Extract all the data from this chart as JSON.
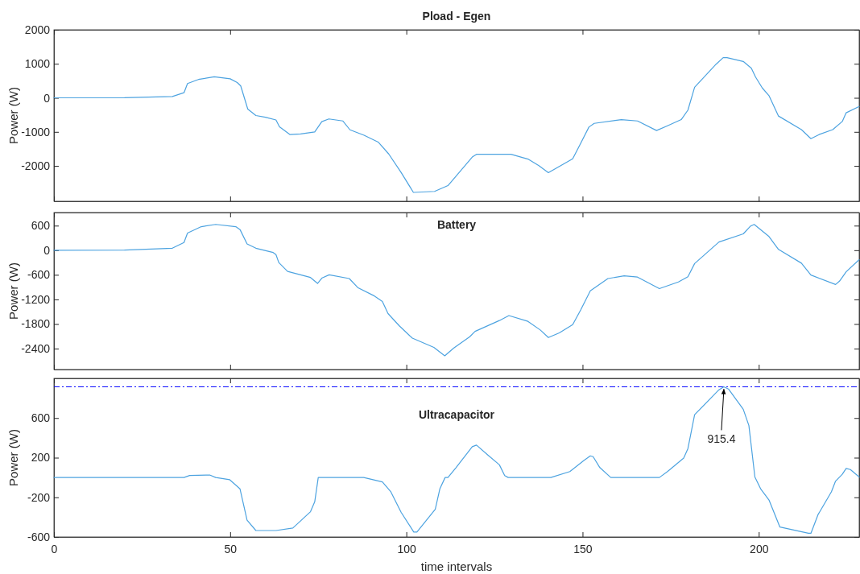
{
  "chart_data": [
    {
      "type": "line",
      "title": "Pload - Egen",
      "ylabel": "Power (W)",
      "xlim": [
        0,
        228.5
      ],
      "xticks": [
        0,
        50,
        100,
        150,
        200
      ],
      "ylim": [
        -3040,
        2000
      ],
      "yticks": [
        -2000,
        -1000,
        0,
        1000,
        2000
      ],
      "tick_labels": "y",
      "x": [
        0,
        20,
        33.6,
        36.9,
        37.9,
        41,
        45.5,
        50,
        52,
        53,
        55,
        57.3,
        60,
        63,
        64,
        67,
        70,
        74,
        76,
        78,
        82,
        84,
        88,
        92,
        95,
        98.5,
        102,
        108,
        111.8,
        118.7,
        119.9,
        129.7,
        134.5,
        137.6,
        140.3,
        143,
        147.2,
        149.5,
        151.8,
        153.3,
        161,
        165.6,
        171,
        174.1,
        178,
        179.9,
        181.8,
        187.9,
        189.9,
        191,
        195.6,
        197.9,
        199.1,
        201,
        202.9,
        205.6,
        212.1,
        214.8,
        217.1,
        221,
        223.7,
        224.8,
        228.5
      ],
      "series": [
        {
          "color": "#4da3e0",
          "values": [
            0,
            5,
            40,
            150,
            420,
            540,
            620,
            560,
            450,
            350,
            -330,
            -520,
            -570,
            -650,
            -850,
            -1080,
            -1060,
            -1000,
            -700,
            -620,
            -680,
            -940,
            -1100,
            -1300,
            -1650,
            -2190,
            -2780,
            -2750,
            -2580,
            -1740,
            -1660,
            -1660,
            -1800,
            -1995,
            -2200,
            -2040,
            -1790,
            -1330,
            -860,
            -750,
            -640,
            -680,
            -960,
            -820,
            -640,
            -360,
            310,
            990,
            1180,
            1180,
            1070,
            870,
            610,
            290,
            65,
            -535,
            -935,
            -1200,
            -1080,
            -935,
            -695,
            -440,
            -255
          ]
        }
      ]
    },
    {
      "type": "line",
      "title": "Battery",
      "ylabel": "Power (W)",
      "xlim": [
        0,
        228.5
      ],
      "xticks": [
        0,
        50,
        100,
        150,
        200
      ],
      "ylim": [
        -2910,
        920
      ],
      "yticks": [
        -2400,
        -1800,
        -1200,
        -600,
        0,
        600
      ],
      "tick_labels": "y",
      "x": [
        0,
        20,
        33.6,
        36.9,
        37.9,
        41.8,
        45.9,
        51.6,
        52.8,
        54.8,
        57.3,
        62.2,
        63,
        63.8,
        66.3,
        72.8,
        74.8,
        76.1,
        78.1,
        83.8,
        86.2,
        90.7,
        93.2,
        94.8,
        98,
        101.7,
        107.8,
        110.9,
        113.4,
        118,
        119.5,
        126.4,
        129.1,
        134.5,
        138,
        140.3,
        143.4,
        147.2,
        149.5,
        152.2,
        157.2,
        161.8,
        165.6,
        171.8,
        177.2,
        179.9,
        181.8,
        188.7,
        195.6,
        197.6,
        198.7,
        202.9,
        205.6,
        212.1,
        214.8,
        221.8,
        222.9,
        224.8,
        228.5
      ],
      "series": [
        {
          "color": "#4da3e0",
          "values": [
            0,
            5,
            50,
            190,
            420,
            575,
            630,
            575,
            505,
            153,
            50,
            -55,
            -105,
            -300,
            -515,
            -665,
            -810,
            -675,
            -600,
            -690,
            -910,
            -1105,
            -1250,
            -1545,
            -1845,
            -2145,
            -2370,
            -2575,
            -2390,
            -2110,
            -1980,
            -1715,
            -1595,
            -1735,
            -1945,
            -2130,
            -2015,
            -1815,
            -1450,
            -990,
            -690,
            -625,
            -655,
            -935,
            -775,
            -645,
            -325,
            200,
            400,
            585,
            630,
            335,
            20,
            -315,
            -605,
            -835,
            -755,
            -525,
            -230
          ]
        }
      ]
    },
    {
      "type": "line",
      "title": "Ultracapacitor",
      "ylabel": "Power (W)",
      "xlabel": "time intervals",
      "xlim": [
        0,
        228.5
      ],
      "xticks": [
        0,
        50,
        100,
        150,
        200
      ],
      "ylim": [
        -600,
        1000
      ],
      "yticks": [
        -600,
        -200,
        200,
        600
      ],
      "x": [
        0,
        36.9,
        38.5,
        44.2,
        45.9,
        49.9,
        52.8,
        54.8,
        57.3,
        63,
        67.8,
        72.8,
        74,
        75,
        87.9,
        93.2,
        95.6,
        98.5,
        102.1,
        103,
        108.2,
        109.5,
        111,
        111.8,
        114.1,
        118.7,
        119.9,
        123,
        126.4,
        127.9,
        128.9,
        141,
        146.4,
        150.3,
        152.2,
        153,
        154.9,
        158,
        171.8,
        174.1,
        178.7,
        179.9,
        181.8,
        188.7,
        190.1,
        191.4,
        195.6,
        197.2,
        198.9,
        200.6,
        202.9,
        206,
        214.1,
        214.8,
        216.8,
        220.6,
        221.8,
        223.7,
        224.8,
        226,
        228.5
      ],
      "series": [
        {
          "color": "#4da3e0",
          "values": [
            0,
            0,
            20,
            25,
            0,
            -23,
            -115,
            -430,
            -535,
            -535,
            -510,
            -345,
            -245,
            0,
            0,
            -45,
            -145,
            -350,
            -550,
            -550,
            -320,
            -115,
            0,
            0,
            100,
            311,
            327,
            230,
            128,
            19,
            0,
            0,
            60,
            169,
            218,
            210,
            100,
            0,
            0,
            60,
            196,
            292,
            633,
            885,
            915.4,
            893,
            688,
            524,
            5,
            -118,
            -227,
            -500,
            -563,
            -563,
            -376,
            -145,
            -36,
            32,
            92,
            80,
            5
          ]
        }
      ],
      "ref_lines": [
        {
          "axis": "y",
          "value": 915.4,
          "color": "#0000ff",
          "line_style": "dashdot"
        }
      ],
      "annotations": [
        {
          "text": "915.4",
          "x": 190.1,
          "y": 915.4
        }
      ]
    }
  ]
}
